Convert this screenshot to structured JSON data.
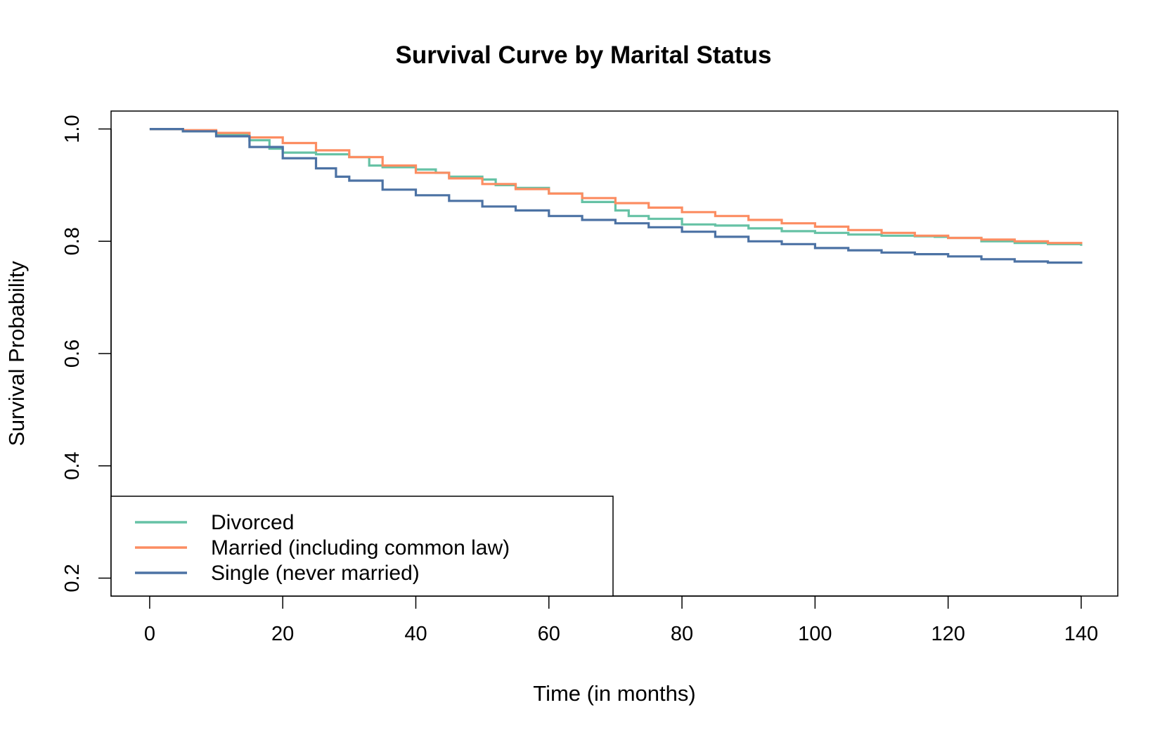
{
  "chart_data": {
    "type": "line",
    "title": "Survival Curve by Marital Status",
    "xlabel": "Time (in months)",
    "ylabel": "Survival Probability",
    "xlim": [
      -5.8,
      145.5
    ],
    "ylim": [
      0.168,
      1.032
    ],
    "x_ticks": [
      0,
      20,
      40,
      60,
      80,
      100,
      120,
      140
    ],
    "x_tick_labels": [
      "0",
      "20",
      "40",
      "60",
      "80",
      "100",
      "120",
      "140"
    ],
    "y_ticks": [
      0.2,
      0.4,
      0.6,
      0.8,
      1.0
    ],
    "y_tick_labels": [
      "0.2",
      "0.4",
      "0.6",
      "0.8",
      "1.0"
    ],
    "grid": false,
    "legend_position": "bottom-left",
    "series": [
      {
        "name": "Divorced",
        "color": "#66C2A5",
        "x": [
          0,
          5,
          10,
          15,
          18,
          20,
          25,
          30,
          33,
          35,
          40,
          43,
          45,
          50,
          52,
          55,
          60,
          65,
          70,
          72,
          75,
          80,
          85,
          90,
          95,
          100,
          105,
          110,
          115,
          118,
          120,
          125,
          130,
          135,
          140
        ],
        "y": [
          1.0,
          0.996,
          0.99,
          0.98,
          0.965,
          0.958,
          0.955,
          0.95,
          0.935,
          0.932,
          0.928,
          0.922,
          0.915,
          0.91,
          0.9,
          0.895,
          0.885,
          0.87,
          0.855,
          0.845,
          0.84,
          0.83,
          0.828,
          0.823,
          0.818,
          0.815,
          0.812,
          0.81,
          0.809,
          0.808,
          0.806,
          0.8,
          0.797,
          0.795,
          0.792
        ]
      },
      {
        "name": "Married (including common law)",
        "color": "#FC8D62",
        "x": [
          0,
          5,
          10,
          15,
          20,
          25,
          30,
          35,
          40,
          45,
          50,
          55,
          60,
          65,
          70,
          75,
          80,
          85,
          90,
          95,
          100,
          105,
          110,
          115,
          120,
          125,
          130,
          135,
          140
        ],
        "y": [
          1.0,
          0.998,
          0.993,
          0.985,
          0.975,
          0.962,
          0.95,
          0.935,
          0.922,
          0.912,
          0.902,
          0.893,
          0.885,
          0.877,
          0.868,
          0.86,
          0.852,
          0.845,
          0.838,
          0.832,
          0.826,
          0.82,
          0.815,
          0.81,
          0.806,
          0.803,
          0.8,
          0.797,
          0.795
        ]
      },
      {
        "name": "Single (never married)",
        "color": "#4C72A4",
        "x": [
          0,
          5,
          10,
          15,
          20,
          25,
          28,
          30,
          35,
          40,
          45,
          50,
          55,
          60,
          65,
          70,
          75,
          80,
          85,
          90,
          95,
          100,
          105,
          110,
          115,
          120,
          125,
          130,
          135,
          140
        ],
        "y": [
          1.0,
          0.996,
          0.987,
          0.968,
          0.948,
          0.93,
          0.915,
          0.908,
          0.892,
          0.882,
          0.872,
          0.862,
          0.855,
          0.845,
          0.838,
          0.832,
          0.825,
          0.817,
          0.808,
          0.8,
          0.795,
          0.788,
          0.784,
          0.78,
          0.777,
          0.773,
          0.768,
          0.764,
          0.762,
          0.76
        ]
      }
    ]
  }
}
